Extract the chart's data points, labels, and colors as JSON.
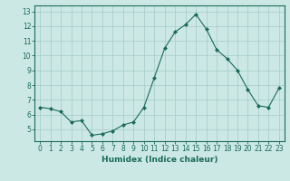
{
  "x": [
    0,
    1,
    2,
    3,
    4,
    5,
    6,
    7,
    8,
    9,
    10,
    11,
    12,
    13,
    14,
    15,
    16,
    17,
    18,
    19,
    20,
    21,
    22,
    23
  ],
  "y": [
    6.5,
    6.4,
    6.2,
    5.5,
    5.6,
    4.6,
    4.7,
    4.9,
    5.3,
    5.5,
    6.5,
    8.5,
    10.5,
    11.6,
    12.1,
    12.8,
    11.8,
    10.4,
    9.8,
    9.0,
    7.7,
    6.6,
    6.5,
    7.8
  ],
  "line_color": "#1a6b5a",
  "marker": "D",
  "marker_size": 2,
  "bg_color": "#cce8e4",
  "grid_color": "#aacfcb",
  "xlabel": "Humidex (Indice chaleur)",
  "xlim": [
    -0.5,
    23.5
  ],
  "ylim": [
    4.2,
    13.4
  ],
  "yticks": [
    5,
    6,
    7,
    8,
    9,
    10,
    11,
    12,
    13
  ],
  "xticks": [
    0,
    1,
    2,
    3,
    4,
    5,
    6,
    7,
    8,
    9,
    10,
    11,
    12,
    13,
    14,
    15,
    16,
    17,
    18,
    19,
    20,
    21,
    22,
    23
  ],
  "tick_color": "#1a6b5a",
  "label_color": "#1a6b5a",
  "axis_color": "#1a6b5a",
  "tick_fontsize": 5.5,
  "label_fontsize": 6.5
}
